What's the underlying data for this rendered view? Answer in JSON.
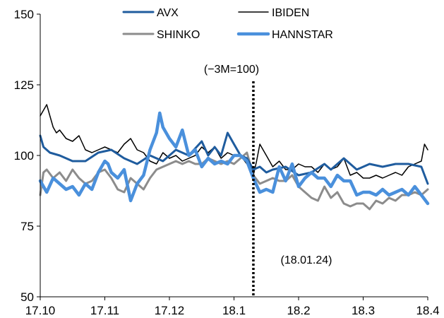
{
  "chart_data": {
    "type": "line",
    "title": "",
    "xlabel": "",
    "ylabel": "",
    "ylim": [
      50,
      150
    ],
    "y_ticks": [
      50,
      75,
      100,
      125,
      150
    ],
    "x_ticks": [
      "17.10",
      "17.11",
      "17.12",
      "18.1",
      "18.2",
      "18.3",
      "18.4"
    ],
    "x_range": [
      0,
      6
    ],
    "grid": false,
    "legend_position": "top",
    "annotations": {
      "base_label": "(−3M=100)",
      "event_date": "(18.01.24)",
      "event_x": 3.3
    },
    "series": [
      {
        "name": "AVX",
        "color": "#1F5C9E",
        "x": [
          0,
          0.05,
          0.15,
          0.3,
          0.5,
          0.7,
          0.9,
          1.1,
          1.3,
          1.5,
          1.7,
          1.9,
          2.1,
          2.3,
          2.5,
          2.6,
          2.7,
          2.8,
          2.9,
          3.0,
          3.1,
          3.2,
          3.3,
          3.4,
          3.5,
          3.6,
          3.8,
          4.0,
          4.2,
          4.4,
          4.5,
          4.7,
          4.9,
          5.1,
          5.3,
          5.5,
          5.7,
          5.9,
          6.0
        ],
        "y": [
          107,
          103,
          101,
          100,
          98,
          98,
          101,
          102,
          99,
          97,
          100,
          98,
          102,
          100,
          105,
          100,
          103,
          100,
          108,
          104,
          100,
          99,
          95,
          96,
          94,
          95,
          96,
          93,
          94,
          97,
          95,
          99,
          95,
          97,
          96,
          97,
          97,
          96,
          90
        ]
      },
      {
        "name": "IBIDEN",
        "color": "#000000",
        "x": [
          0,
          0.05,
          0.1,
          0.15,
          0.2,
          0.25,
          0.3,
          0.4,
          0.5,
          0.6,
          0.7,
          0.8,
          0.9,
          1.0,
          1.1,
          1.2,
          1.3,
          1.4,
          1.5,
          1.6,
          1.7,
          1.8,
          1.9,
          2.0,
          2.1,
          2.2,
          2.3,
          2.4,
          2.5,
          2.6,
          2.7,
          2.8,
          2.9,
          3.0,
          3.1,
          3.2,
          3.3,
          3.35,
          3.4,
          3.5,
          3.6,
          3.7,
          3.8,
          3.9,
          4.0,
          4.1,
          4.2,
          4.3,
          4.4,
          4.5,
          4.6,
          4.7,
          4.8,
          4.9,
          5.0,
          5.1,
          5.2,
          5.3,
          5.4,
          5.5,
          5.6,
          5.7,
          5.8,
          5.9,
          5.95,
          6.0
        ],
        "y": [
          114,
          116,
          118,
          114,
          110,
          108,
          109,
          106,
          105,
          107,
          102,
          101,
          102,
          103,
          102,
          101,
          104,
          106,
          102,
          101,
          98,
          97,
          101,
          99,
          100,
          98,
          99,
          100,
          103,
          101,
          103,
          99,
          101,
          100,
          100,
          97,
          93,
          98,
          104,
          100,
          96,
          98,
          95,
          95,
          97,
          96,
          96,
          94,
          97,
          95,
          96,
          99,
          93,
          94,
          92,
          92,
          93,
          92,
          93,
          94,
          93,
          96,
          97,
          98,
          104,
          102
        ]
      },
      {
        "name": "SHINKO",
        "color": "#8C8C8C",
        "x": [
          0,
          0.05,
          0.1,
          0.2,
          0.3,
          0.4,
          0.5,
          0.6,
          0.7,
          0.8,
          0.9,
          1.0,
          1.1,
          1.2,
          1.3,
          1.4,
          1.5,
          1.6,
          1.7,
          1.8,
          1.9,
          2.0,
          2.1,
          2.2,
          2.3,
          2.4,
          2.5,
          2.6,
          2.7,
          2.8,
          2.9,
          3.0,
          3.1,
          3.2,
          3.3,
          3.4,
          3.5,
          3.6,
          3.7,
          3.8,
          3.9,
          4.0,
          4.1,
          4.2,
          4.3,
          4.4,
          4.5,
          4.6,
          4.7,
          4.8,
          4.9,
          5.0,
          5.1,
          5.2,
          5.3,
          5.4,
          5.5,
          5.6,
          5.7,
          5.8,
          5.9,
          6.0
        ],
        "y": [
          86,
          94,
          95,
          92,
          94,
          91,
          95,
          92,
          90,
          91,
          94,
          95,
          92,
          88,
          87,
          92,
          90,
          88,
          92,
          95,
          96,
          97,
          98,
          97,
          98,
          97,
          97,
          99,
          98,
          97,
          98,
          97,
          99,
          101,
          93,
          90,
          91,
          92,
          91,
          91,
          93,
          89,
          87,
          85,
          84,
          89,
          85,
          87,
          83,
          82,
          83,
          83,
          81,
          84,
          83,
          85,
          84,
          86,
          86,
          87,
          86,
          88
        ]
      },
      {
        "name": "HANNSTAR",
        "color": "#4A90DC",
        "x": [
          0,
          0.05,
          0.1,
          0.2,
          0.3,
          0.4,
          0.5,
          0.6,
          0.7,
          0.8,
          0.9,
          1.0,
          1.05,
          1.1,
          1.2,
          1.3,
          1.4,
          1.5,
          1.6,
          1.7,
          1.8,
          1.85,
          1.9,
          2.0,
          2.1,
          2.2,
          2.3,
          2.4,
          2.5,
          2.6,
          2.7,
          2.8,
          2.9,
          3.0,
          3.1,
          3.2,
          3.3,
          3.4,
          3.5,
          3.6,
          3.7,
          3.8,
          3.9,
          4.0,
          4.1,
          4.2,
          4.3,
          4.4,
          4.5,
          4.6,
          4.7,
          4.8,
          4.9,
          5.0,
          5.1,
          5.2,
          5.3,
          5.4,
          5.5,
          5.6,
          5.7,
          5.8,
          5.9,
          6.0
        ],
        "y": [
          91,
          89,
          87,
          92,
          90,
          88,
          89,
          86,
          90,
          88,
          94,
          98,
          97,
          94,
          92,
          95,
          84,
          90,
          93,
          102,
          108,
          115,
          110,
          106,
          103,
          109,
          100,
          102,
          96,
          99,
          97,
          98,
          97,
          100,
          100,
          98,
          92,
          87,
          88,
          87,
          96,
          91,
          97,
          89,
          92,
          94,
          92,
          92,
          89,
          93,
          91,
          91,
          86,
          87,
          87,
          86,
          88,
          86,
          87,
          88,
          86,
          89,
          86,
          83
        ]
      }
    ]
  }
}
